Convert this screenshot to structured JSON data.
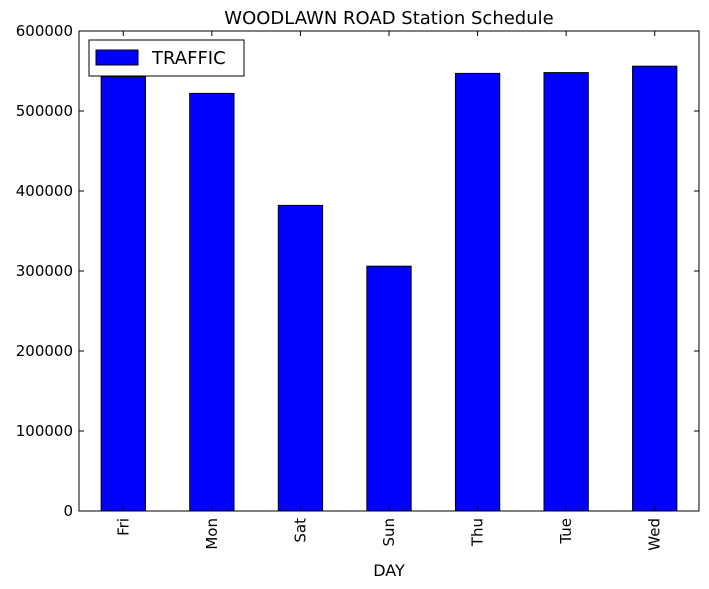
{
  "chart_data": {
    "type": "bar",
    "title": "WOODLAWN ROAD Station Schedule",
    "xlabel": "DAY",
    "ylabel": "",
    "categories": [
      "Fri",
      "Mon",
      "Sat",
      "Sun",
      "Thu",
      "Tue",
      "Wed"
    ],
    "series": [
      {
        "name": "TRAFFIC",
        "color": "#0000ff",
        "values": [
          543000,
          522000,
          382000,
          306000,
          547000,
          548000,
          556000
        ]
      }
    ],
    "ylim": [
      0,
      600000
    ],
    "yticks": [
      0,
      100000,
      200000,
      300000,
      400000,
      500000,
      600000
    ],
    "grid": false,
    "legend_position": "top-left"
  }
}
